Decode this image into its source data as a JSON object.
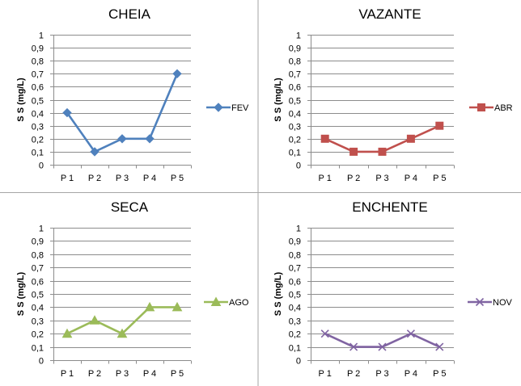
{
  "chart_data": [
    {
      "type": "line",
      "title": "CHEIA",
      "ylabel": "S S (mg/L)",
      "xlabel": "",
      "categories": [
        "P 1",
        "P 2",
        "P 3",
        "P 4",
        "P 5"
      ],
      "series": [
        {
          "name": "FEV",
          "values": [
            0.4,
            0.1,
            0.2,
            0.2,
            0.7
          ]
        }
      ],
      "ylim": [
        0,
        1
      ],
      "yticks": [
        "0",
        "0,1",
        "0,2",
        "0,3",
        "0,4",
        "0,5",
        "0,6",
        "0,7",
        "0,8",
        "0,9",
        "1"
      ],
      "grid": true,
      "legend": "right",
      "color": "#4F81BD",
      "marker": "diamond"
    },
    {
      "type": "line",
      "title": "VAZANTE",
      "ylabel": "S S (mg/L)",
      "xlabel": "",
      "categories": [
        "P 1",
        "P 2",
        "P 3",
        "P 4",
        "P 5"
      ],
      "series": [
        {
          "name": "ABR",
          "values": [
            0.2,
            0.1,
            0.1,
            0.2,
            0.3
          ]
        }
      ],
      "ylim": [
        0,
        1
      ],
      "yticks": [
        "0",
        "0,1",
        "0,2",
        "0,3",
        "0,4",
        "0,5",
        "0,6",
        "0,7",
        "0,8",
        "0,9",
        "1"
      ],
      "grid": true,
      "legend": "right",
      "color": "#C0504D",
      "marker": "square"
    },
    {
      "type": "line",
      "title": "SECA",
      "ylabel": "S S (mg/L)",
      "xlabel": "",
      "categories": [
        "P 1",
        "P 2",
        "P 3",
        "P 4",
        "P 5"
      ],
      "series": [
        {
          "name": "AGO",
          "values": [
            0.2,
            0.3,
            0.2,
            0.4,
            0.4
          ]
        }
      ],
      "ylim": [
        0,
        1
      ],
      "yticks": [
        "0",
        "0,1",
        "0,2",
        "0,3",
        "0,4",
        "0,5",
        "0,6",
        "0,7",
        "0,8",
        "0,9",
        "1"
      ],
      "grid": true,
      "legend": "right",
      "color": "#9BBB59",
      "marker": "triangle"
    },
    {
      "type": "line",
      "title": "ENCHENTE",
      "ylabel": "S S (mg/L)",
      "xlabel": "",
      "categories": [
        "P 1",
        "P 2",
        "P 3",
        "P 4",
        "P 5"
      ],
      "series": [
        {
          "name": "NOV",
          "values": [
            0.2,
            0.1,
            0.1,
            0.2,
            0.1
          ]
        }
      ],
      "ylim": [
        0,
        1
      ],
      "yticks": [
        "0",
        "0,1",
        "0,2",
        "0,3",
        "0,4",
        "0,5",
        "0,6",
        "0,7",
        "0,8",
        "0,9",
        "1"
      ],
      "grid": true,
      "legend": "right",
      "color": "#8064A2",
      "marker": "x"
    }
  ]
}
